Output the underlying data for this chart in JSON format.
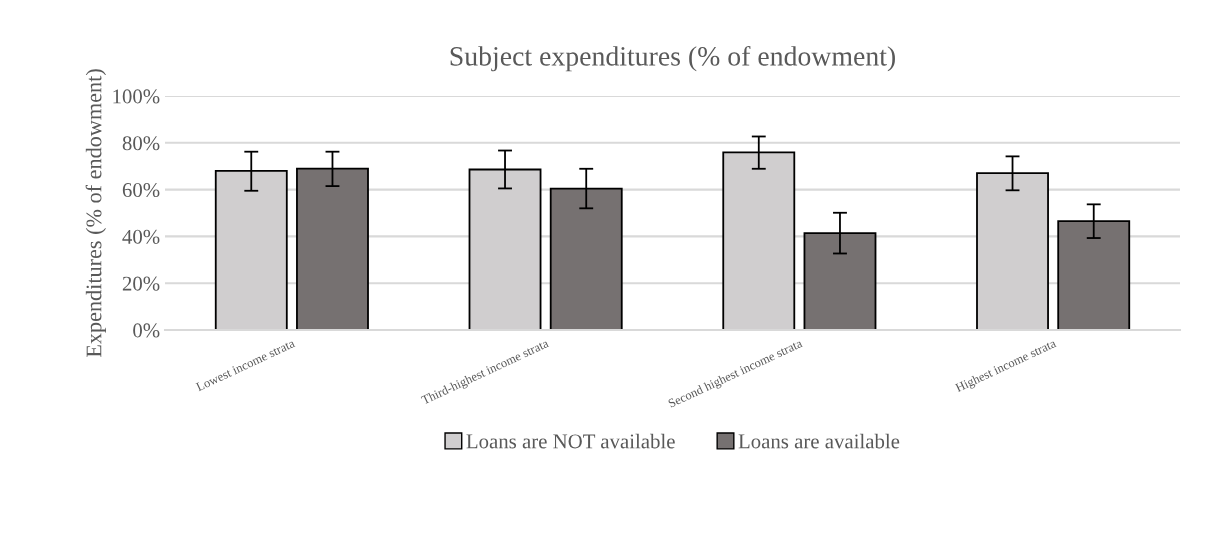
{
  "chart_data": {
    "type": "bar",
    "title": "Subject expenditures (% of endowment)",
    "ylabel": "Expenditures (% of endowment)",
    "categories": [
      "Lowest income strata",
      "Third-highest income strata",
      "Second highest income strata",
      "Highest income strata"
    ],
    "series": [
      {
        "name": "Loans are NOT available",
        "color": "#d0cecf",
        "values": [
          68.0,
          68.6,
          75.9,
          67.0
        ],
        "errors": [
          [
            59.5,
            76.2
          ],
          [
            60.5,
            76.7
          ],
          [
            68.9,
            82.7
          ],
          [
            59.7,
            74.2
          ]
        ]
      },
      {
        "name": "Loans are available",
        "color": "#767171",
        "values": [
          69.0,
          60.4,
          41.4,
          46.5
        ],
        "errors": [
          [
            61.5,
            76.2
          ],
          [
            52.0,
            68.9
          ],
          [
            32.7,
            50.1
          ],
          [
            39.3,
            53.7
          ]
        ]
      }
    ],
    "ylim": [
      0,
      100
    ],
    "yticks": [
      {
        "value": 0,
        "label": "0%"
      },
      {
        "value": 20,
        "label": "20%"
      },
      {
        "value": 40,
        "label": "40%"
      },
      {
        "value": 60,
        "label": "60%"
      },
      {
        "value": 80,
        "label": "80%"
      },
      {
        "value": 100,
        "label": "100%"
      }
    ],
    "grid": "y",
    "legend": "bottom"
  }
}
